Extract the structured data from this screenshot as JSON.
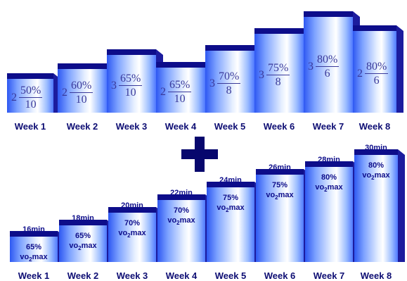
{
  "top_chart": {
    "steps": [
      {
        "week": "Week 1",
        "reps": "2",
        "pct": "50%",
        "minutes": "10"
      },
      {
        "week": "Week 2",
        "reps": "2",
        "pct": "60%",
        "minutes": "10"
      },
      {
        "week": "Week 3",
        "reps": "3",
        "pct": "65%",
        "minutes": "10"
      },
      {
        "week": "Week 4",
        "reps": "2",
        "pct": "65%",
        "minutes": "10"
      },
      {
        "week": "Week 5",
        "reps": "3",
        "pct": "70%",
        "minutes": "8"
      },
      {
        "week": "Week 6",
        "reps": "3",
        "pct": "75%",
        "minutes": "8"
      },
      {
        "week": "Week 7",
        "reps": "3",
        "pct": "80%",
        "minutes": "6"
      },
      {
        "week": "Week 8",
        "reps": "2",
        "pct": "80%",
        "minutes": "6"
      }
    ]
  },
  "plus_symbol": "+",
  "bottom_chart": {
    "steps": [
      {
        "week": "Week 1",
        "duration": "16min",
        "pct": "65%",
        "vo2_main": "vo",
        "vo2_sub": "2",
        "vo2_tail": "max"
      },
      {
        "week": "Week 2",
        "duration": "18min",
        "pct": "65%",
        "vo2_main": "vo",
        "vo2_sub": "2",
        "vo2_tail": "max"
      },
      {
        "week": "Week 3",
        "duration": "20min",
        "pct": "70%",
        "vo2_main": "vo",
        "vo2_sub": "2",
        "vo2_tail": "max"
      },
      {
        "week": "Week 4",
        "duration": "22min",
        "pct": "70%",
        "vo2_main": "vo",
        "vo2_sub": "2",
        "vo2_tail": "max"
      },
      {
        "week": "Week 5",
        "duration": "24min",
        "pct": "75%",
        "vo2_main": "vo",
        "vo2_sub": "2",
        "vo2_tail": "max"
      },
      {
        "week": "Week 6",
        "duration": "26min",
        "pct": "75%",
        "vo2_main": "vo",
        "vo2_sub": "2",
        "vo2_tail": "max"
      },
      {
        "week": "Week 7",
        "duration": "28min",
        "pct": "80%",
        "vo2_main": "vo",
        "vo2_sub": "2",
        "vo2_tail": "max"
      },
      {
        "week": "Week 8",
        "duration": "30min",
        "pct": "80%",
        "vo2_main": "vo",
        "vo2_sub": "2",
        "vo2_tail": "max"
      }
    ]
  },
  "colors": {
    "bar_top": "#0d0d8a",
    "bar_side": "#1c1c9e",
    "label_text": "#0d0d73",
    "plus": "#07076d"
  }
}
